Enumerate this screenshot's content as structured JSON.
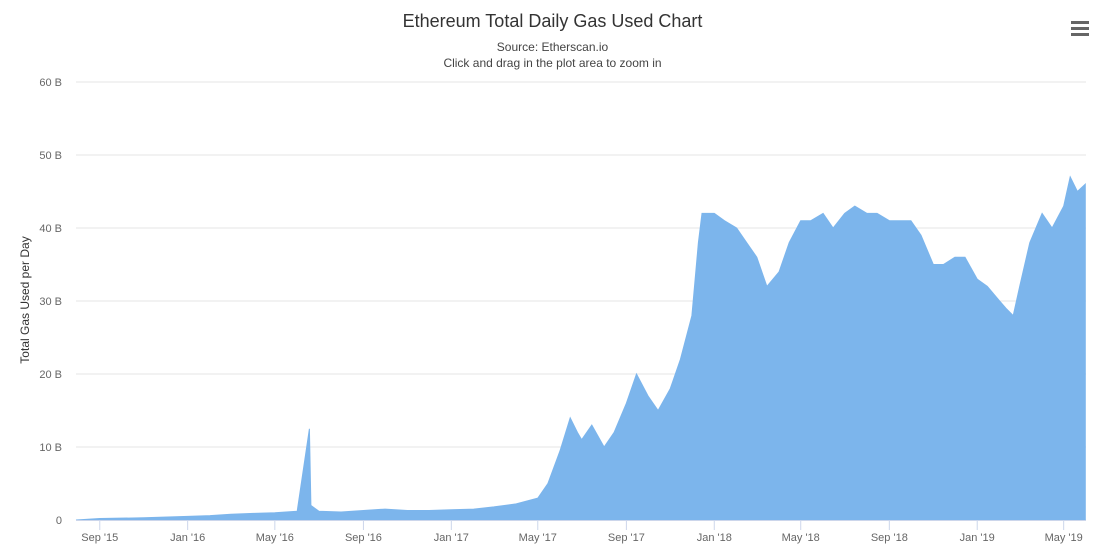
{
  "title": "Ethereum Total Daily Gas Used Chart",
  "subtitle": "Source: Etherscan.io",
  "hint": "Click and drag in the plot area to zoom in",
  "menu_icon": "hamburger-menu-icon",
  "colors": {
    "series": "#7cb5ec",
    "grid": "#e6e6e6",
    "axis": "#ccd6eb"
  },
  "chart_data": {
    "type": "area",
    "x_unit": "date",
    "y_unit": "gas",
    "ylabel": "Total Gas Used per Day",
    "ylim": [
      0,
      60000000000
    ],
    "yticks": [
      0,
      10000000000,
      20000000000,
      30000000000,
      40000000000,
      50000000000,
      60000000000
    ],
    "ytick_labels": [
      "0",
      "10 B",
      "20 B",
      "30 B",
      "40 B",
      "50 B",
      "60 B"
    ],
    "xlim": [
      "2015-07-30",
      "2019-06-01"
    ],
    "xticks": [
      "2015-09-01",
      "2016-01-01",
      "2016-05-01",
      "2016-09-01",
      "2017-01-01",
      "2017-05-01",
      "2017-09-01",
      "2018-01-01",
      "2018-05-01",
      "2018-09-01",
      "2019-01-01",
      "2019-05-01"
    ],
    "xtick_labels": [
      "Sep '15",
      "Jan '16",
      "May '16",
      "Sep '16",
      "Jan '17",
      "May '17",
      "Sep '17",
      "Jan '18",
      "May '18",
      "Sep '18",
      "Jan '19",
      "May '19"
    ],
    "grid": true,
    "legend": "none",
    "series": [
      {
        "x": [
          "2015-07-30",
          "2015-09-01",
          "2015-11-01",
          "2016-01-01",
          "2016-02-01",
          "2016-03-01",
          "2016-04-01",
          "2016-05-01",
          "2016-06-01",
          "2016-06-18",
          "2016-06-20",
          "2016-07-01",
          "2016-08-01",
          "2016-09-01",
          "2016-10-01",
          "2016-11-01",
          "2016-12-01",
          "2017-01-01",
          "2017-02-01",
          "2017-03-01",
          "2017-04-01",
          "2017-05-01",
          "2017-05-15",
          "2017-06-01",
          "2017-06-15",
          "2017-06-25",
          "2017-07-01",
          "2017-07-15",
          "2017-08-01",
          "2017-08-15",
          "2017-09-01",
          "2017-09-15",
          "2017-10-01",
          "2017-10-15",
          "2017-11-01",
          "2017-11-15",
          "2017-12-01",
          "2017-12-10",
          "2017-12-15",
          "2018-01-01",
          "2018-01-15",
          "2018-02-01",
          "2018-02-15",
          "2018-03-01",
          "2018-03-15",
          "2018-04-01",
          "2018-04-15",
          "2018-05-01",
          "2018-05-15",
          "2018-06-01",
          "2018-06-15",
          "2018-07-01",
          "2018-07-15",
          "2018-08-01",
          "2018-08-15",
          "2018-09-01",
          "2018-09-15",
          "2018-10-01",
          "2018-10-15",
          "2018-11-01",
          "2018-11-15",
          "2018-12-01",
          "2018-12-15",
          "2019-01-01",
          "2019-01-15",
          "2019-02-01",
          "2019-02-10",
          "2019-02-20",
          "2019-03-01",
          "2019-03-15",
          "2019-04-01",
          "2019-04-15",
          "2019-05-01",
          "2019-05-10",
          "2019-05-20",
          "2019-05-31"
        ],
        "y": [
          0,
          200000000,
          300000000,
          500000000,
          600000000,
          800000000,
          900000000,
          1000000000,
          1200000000,
          12500000000,
          2000000000,
          1200000000,
          1100000000,
          1300000000,
          1500000000,
          1300000000,
          1300000000,
          1400000000,
          1500000000,
          1800000000,
          2200000000,
          3000000000,
          5000000000,
          9500000000,
          14000000000,
          12000000000,
          11000000000,
          13000000000,
          10000000000,
          12000000000,
          16000000000,
          20000000000,
          17000000000,
          15000000000,
          18000000000,
          22000000000,
          28000000000,
          38000000000,
          42000000000,
          42000000000,
          41000000000,
          40000000000,
          38000000000,
          36000000000,
          32000000000,
          34000000000,
          38000000000,
          41000000000,
          41000000000,
          42000000000,
          40000000000,
          42000000000,
          43000000000,
          42000000000,
          42000000000,
          41000000000,
          41000000000,
          41000000000,
          39000000000,
          35000000000,
          35000000000,
          36000000000,
          36000000000,
          33000000000,
          32000000000,
          30000000000,
          29000000000,
          28000000000,
          32000000000,
          38000000000,
          42000000000,
          40000000000,
          43000000000,
          47000000000,
          45000000000,
          46000000000
        ]
      }
    ]
  }
}
